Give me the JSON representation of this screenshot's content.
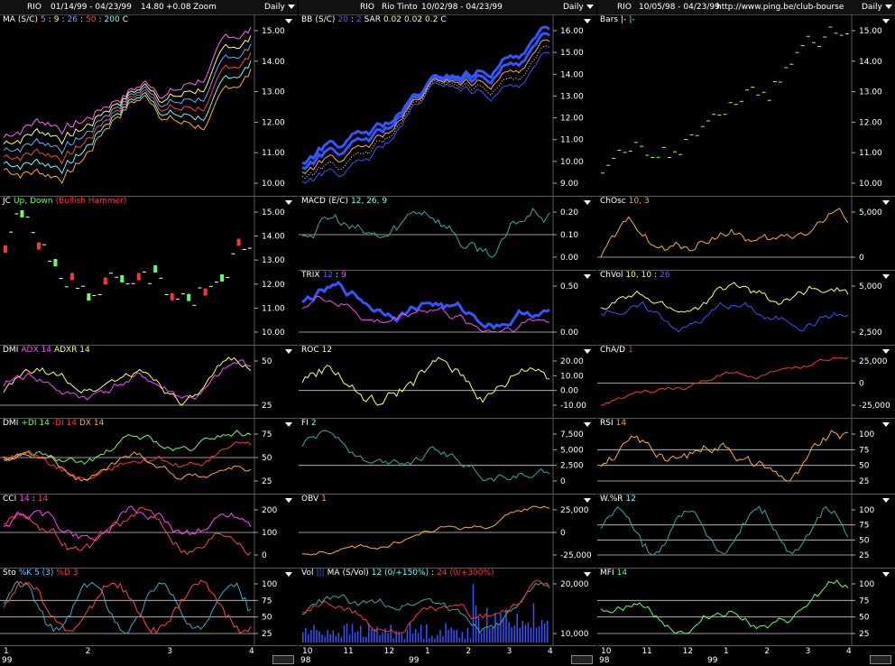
{
  "columns": [
    {
      "symbol": "RIO",
      "range": "01/14/99 - 04/23/99",
      "price": "14.80",
      "change": "+0.08",
      "zoom": "Zoom",
      "period": "Daily",
      "panels": [
        {
          "id": "ma",
          "title": [
            {
              "t": "MA",
              "c": "#ffffff"
            },
            {
              "t": "(S/C)",
              "c": "#ffffff"
            },
            {
              "t": "5",
              "c": "#ff66ff"
            },
            {
              "t": ":",
              "c": "#ffffff"
            },
            {
              "t": "9",
              "c": "#ffff66"
            },
            {
              "t": ":",
              "c": "#ffffff"
            },
            {
              "t": "26",
              "c": "#66aaff"
            },
            {
              "t": ":",
              "c": "#ffffff"
            },
            {
              "t": "50",
              "c": "#ff4444"
            },
            {
              "t": ":",
              "c": "#ffffff"
            },
            {
              "t": "200",
              "c": "#66ffff"
            },
            {
              "t": "C",
              "c": "#ffffff"
            }
          ],
          "ticks": [
            "15.00",
            "14.00",
            "13.00",
            "12.00",
            "11.00",
            "10.00"
          ]
        },
        {
          "id": "jc",
          "title": [
            {
              "t": "JC",
              "c": "#ffffff"
            },
            {
              "t": "Up,",
              "c": "#66ff66"
            },
            {
              "t": "Down",
              "c": "#66ff66"
            },
            {
              "t": "(Bullish Hammer)",
              "c": "#ff3333"
            }
          ],
          "ticks": [
            "15.00",
            "14.00",
            "13.00",
            "12.00",
            "11.00",
            "10.00"
          ]
        },
        {
          "id": "dmi1",
          "title": [
            {
              "t": "DMI",
              "c": "#ffffff"
            },
            {
              "t": "ADX 14",
              "c": "#ff44ff"
            },
            {
              "t": "ADXR 14",
              "c": "#ffff66"
            }
          ],
          "ticks": [
            "50",
            "25"
          ]
        },
        {
          "id": "dmi2",
          "title": [
            {
              "t": "DMI",
              "c": "#ffffff"
            },
            {
              "t": "+DI 14",
              "c": "#66ff66"
            },
            {
              "t": "-DI 14",
              "c": "#ff3333"
            },
            {
              "t": "DX 14",
              "c": "#ffaa33"
            }
          ],
          "ticks": [
            "75",
            "50",
            "25"
          ]
        },
        {
          "id": "cci",
          "title": [
            {
              "t": "CCI",
              "c": "#ffffff"
            },
            {
              "t": "14",
              "c": "#ff44ff"
            },
            {
              "t": ":",
              "c": "#ffffff"
            },
            {
              "t": "14",
              "c": "#ff4444"
            }
          ],
          "ticks": [
            "200",
            "100",
            "0"
          ]
        },
        {
          "id": "sto",
          "title": [
            {
              "t": "Sto",
              "c": "#ffffff"
            },
            {
              "t": "%K 5 (3)",
              "c": "#66ccff"
            },
            {
              "t": "%D 3",
              "c": "#ff4444"
            }
          ],
          "ticks": [
            "100",
            "75",
            "50",
            "25"
          ]
        }
      ],
      "xlabels": [
        "1",
        "2",
        "3",
        "4"
      ],
      "year": "99"
    },
    {
      "symbol": "RIO",
      "name": "Rio Tinto",
      "range": "10/02/98 - 04/23/99",
      "period": "Daily",
      "panels": [
        {
          "id": "bb",
          "title": [
            {
              "t": "BB",
              "c": "#ffffff"
            },
            {
              "t": "(S/C)",
              "c": "#ffffff"
            },
            {
              "t": "20",
              "c": "#4466ff"
            },
            {
              "t": ":",
              "c": "#ffffff"
            },
            {
              "t": "2",
              "c": "#4466ff"
            },
            {
              "t": "SAR",
              "c": "#ffffff"
            },
            {
              "t": "0.02",
              "c": "#ffff66"
            },
            {
              "t": "0.02",
              "c": "#ffff66"
            },
            {
              "t": "0.2",
              "c": "#ffff66"
            },
            {
              "t": "C",
              "c": "#ffffff"
            }
          ],
          "ticks": [
            "16.00",
            "15.00",
            "14.00",
            "13.00",
            "12.00",
            "11.00",
            "10.00",
            "9.00"
          ]
        },
        {
          "id": "macd",
          "title": [
            {
              "t": "MACD",
              "c": "#ffffff"
            },
            {
              "t": "(E/C)",
              "c": "#ffffff"
            },
            {
              "t": "12, 26, 9",
              "c": "#66ffff"
            }
          ],
          "ticks": [
            "0.20",
            "0.10",
            "0.00"
          ]
        },
        {
          "id": "trix",
          "title": [
            {
              "t": "TRIX",
              "c": "#ffffff"
            },
            {
              "t": "12",
              "c": "#4466ff"
            },
            {
              "t": ":",
              "c": "#ffffff"
            },
            {
              "t": "9",
              "c": "#ff44ff"
            }
          ],
          "ticks": [
            "0.50",
            "0.00"
          ]
        },
        {
          "id": "roc",
          "title": [
            {
              "t": "ROC",
              "c": "#ffffff"
            },
            {
              "t": "12",
              "c": "#ffff66"
            }
          ],
          "ticks": [
            "20.00",
            "10.00",
            "0.00",
            "-10.00"
          ]
        },
        {
          "id": "fi",
          "title": [
            {
              "t": "FI",
              "c": "#ffffff"
            },
            {
              "t": "2",
              "c": "#66ffff"
            }
          ],
          "ticks": [
            "7,500",
            "5,000",
            "2,500",
            "0"
          ]
        },
        {
          "id": "obv",
          "title": [
            {
              "t": "OBV",
              "c": "#ffffff"
            },
            {
              "t": "1",
              "c": "#ffaa33"
            }
          ],
          "ticks": [
            "25,000",
            "0",
            "-25,000"
          ]
        },
        {
          "id": "vol",
          "title": [
            {
              "t": "Vol",
              "c": "#ffffff"
            },
            {
              "t": "|||",
              "c": "#4466ff"
            },
            {
              "t": "MA",
              "c": "#ffffff"
            },
            {
              "t": "(S/Vol)",
              "c": "#ffffff"
            },
            {
              "t": "12 (0/+150%)",
              "c": "#66ffff"
            },
            {
              "t": ":",
              "c": "#ffffff"
            },
            {
              "t": "24 (0/+300%)",
              "c": "#ff3333"
            }
          ],
          "ticks": [
            "20,000",
            "10,000"
          ]
        }
      ],
      "xlabels": [
        "10",
        "11",
        "12",
        "1",
        "2",
        "3",
        "4"
      ],
      "year": "98",
      "year2": "99"
    },
    {
      "symbol": "RIO",
      "range": "10/05/98 - 04/23/99",
      "url": "http://www.ping.be/club-bourse",
      "period": "Daily",
      "panels": [
        {
          "id": "bars",
          "title": [
            {
              "t": "Bars",
              "c": "#ffffff"
            },
            {
              "t": "|-",
              "c": "#ffffff"
            },
            {
              "t": "|-",
              "c": "#66ffff"
            }
          ],
          "ticks": [
            "15.00",
            "14.00",
            "13.00",
            "12.00",
            "11.00",
            "10.00"
          ]
        },
        {
          "id": "chosc",
          "title": [
            {
              "t": "ChOsc",
              "c": "#ffffff"
            },
            {
              "t": "10, 3",
              "c": "#ffaa33"
            }
          ],
          "ticks": [
            "5,000",
            "0"
          ]
        },
        {
          "id": "chvol",
          "title": [
            {
              "t": "ChVol",
              "c": "#ffffff"
            },
            {
              "t": "10, 10",
              "c": "#ffff66"
            },
            {
              "t": ":",
              "c": "#ffffff"
            },
            {
              "t": "26",
              "c": "#4466ff"
            }
          ],
          "ticks": [
            "5,000",
            "2,500"
          ]
        },
        {
          "id": "chad",
          "title": [
            {
              "t": "ChA/D",
              "c": "#ffffff"
            },
            {
              "t": "1",
              "c": "#ff3333"
            }
          ],
          "ticks": [
            "25,000",
            "0",
            "-25,000"
          ]
        },
        {
          "id": "rsi",
          "title": [
            {
              "t": "RSI",
              "c": "#ffffff"
            },
            {
              "t": "14",
              "c": "#ffaa33"
            }
          ],
          "ticks": [
            "100",
            "75",
            "50",
            "25"
          ]
        },
        {
          "id": "wr",
          "title": [
            {
              "t": "W.%R",
              "c": "#ffffff"
            },
            {
              "t": "12",
              "c": "#66ffff"
            }
          ],
          "ticks": [
            "100",
            "75",
            "50",
            "25"
          ]
        },
        {
          "id": "mfi",
          "title": [
            {
              "t": "MFI",
              "c": "#ffffff"
            },
            {
              "t": "14",
              "c": "#66ff66"
            }
          ],
          "ticks": [
            "100",
            "75",
            "50",
            "25"
          ]
        }
      ],
      "xlabels": [
        "10",
        "11",
        "12",
        "1",
        "2",
        "3",
        "4"
      ],
      "year": "98",
      "year2": "99"
    }
  ]
}
